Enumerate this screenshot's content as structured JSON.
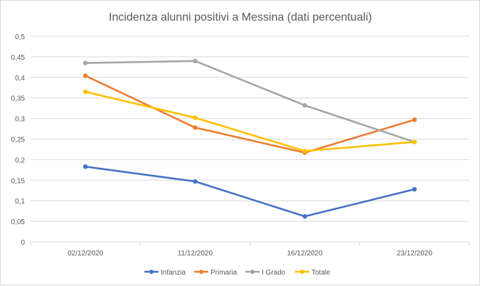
{
  "chart_data": {
    "type": "line",
    "title": "Incidenza alunni positivi a Messina (dati percentuali)",
    "xlabel": "",
    "ylabel": "",
    "categories": [
      "02/12/2020",
      "11/12/2020",
      "16/12/2020",
      "23/12/2020"
    ],
    "ylim": [
      0,
      0.5
    ],
    "ytick_labels": [
      "0",
      "0,05",
      "0,1",
      "0,15",
      "0,2",
      "0,25",
      "0,3",
      "0,35",
      "0,4",
      "0,45",
      "0,5"
    ],
    "grid": true,
    "legend_position": "bottom",
    "series": [
      {
        "name": "Infanzia",
        "color": "#4472c4",
        "values": [
          0.183,
          0.147,
          0.062,
          0.128
        ]
      },
      {
        "name": "Primaria",
        "color": "#ed7d31",
        "values": [
          0.404,
          0.278,
          0.217,
          0.297
        ]
      },
      {
        "name": "I Grado",
        "color": "#a5a5a5",
        "values": [
          0.435,
          0.44,
          0.332,
          0.243
        ]
      },
      {
        "name": "Totale",
        "color": "#ffc000",
        "values": [
          0.365,
          0.302,
          0.221,
          0.243
        ]
      }
    ]
  }
}
